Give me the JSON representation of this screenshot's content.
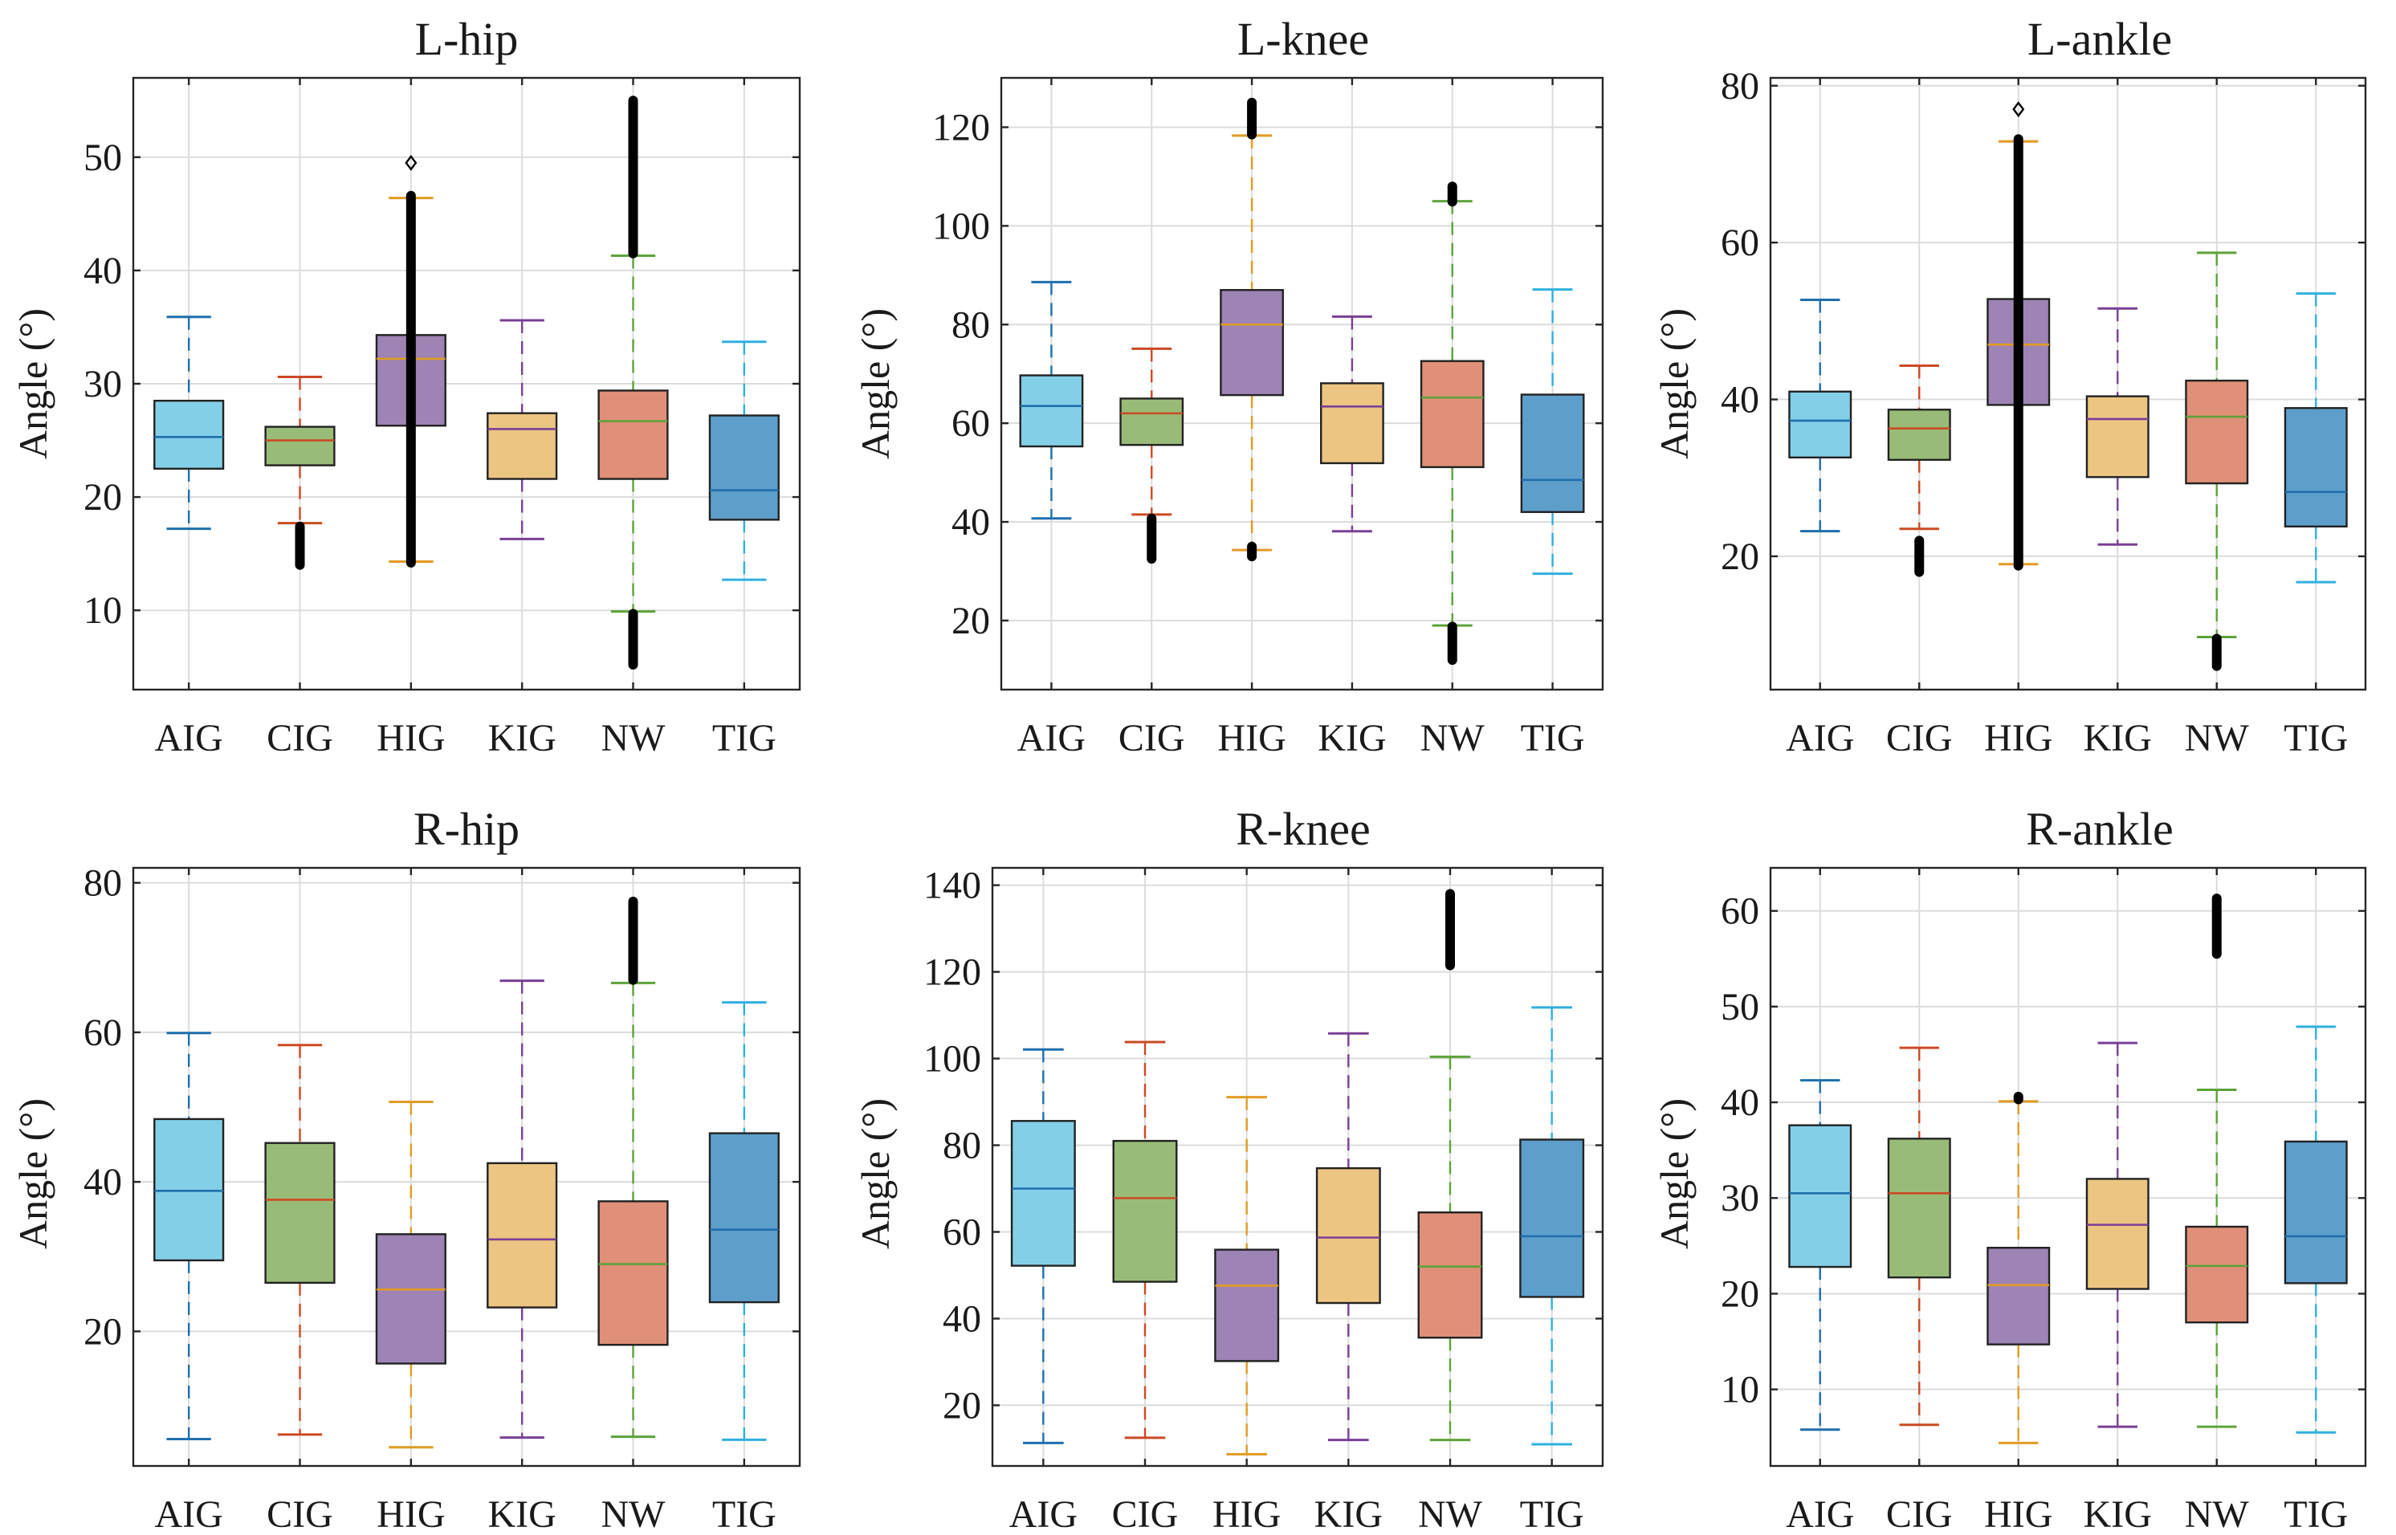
{
  "chart_data": [
    {
      "type": "box",
      "title": "L-hip",
      "xlabel": "",
      "ylabel": "Angle (°)",
      "ylim": [
        3,
        57
      ],
      "yticks": [
        10,
        20,
        30,
        40,
        50
      ],
      "ytick_labels": [
        "10",
        "20",
        "30",
        "40",
        "50"
      ],
      "grid": true,
      "categories": [
        "AIG",
        "CIG",
        "HIG",
        "KIG",
        "NW",
        "TIG"
      ],
      "boxes": [
        {
          "whisker_low": 17.2,
          "q1": 22.5,
          "median": 25.3,
          "q3": 28.5,
          "whisker_high": 35.9,
          "outliers": []
        },
        {
          "whisker_low": 17.7,
          "q1": 22.8,
          "median": 25.0,
          "q3": 26.2,
          "whisker_high": 30.6,
          "outliers": [
            14.0,
            17.4
          ]
        },
        {
          "whisker_low": 14.3,
          "q1": 26.3,
          "median": 32.2,
          "q3": 34.3,
          "whisker_high": 46.4,
          "outliers": [
            14.2,
            46.6,
            49.5
          ]
        },
        {
          "whisker_low": 16.3,
          "q1": 21.6,
          "median": 26.0,
          "q3": 27.4,
          "whisker_high": 35.6,
          "outliers": []
        },
        {
          "whisker_low": 9.9,
          "q1": 21.6,
          "median": 26.7,
          "q3": 29.4,
          "whisker_high": 41.3,
          "outliers": [
            5.2,
            9.7,
            41.5,
            55.0
          ]
        },
        {
          "whisker_low": 12.7,
          "q1": 18.0,
          "median": 20.6,
          "q3": 27.2,
          "whisker_high": 33.7,
          "outliers": []
        }
      ]
    },
    {
      "type": "box",
      "title": "L-knee",
      "xlabel": "",
      "ylabel": "Angle (°)",
      "ylim": [
        6,
        130
      ],
      "yticks": [
        20,
        40,
        60,
        80,
        100,
        120
      ],
      "ytick_labels": [
        "20",
        "40",
        "60",
        "80",
        "100",
        "120"
      ],
      "grid": true,
      "categories": [
        "AIG",
        "CIG",
        "HIG",
        "KIG",
        "NW",
        "TIG"
      ],
      "boxes": [
        {
          "whisker_low": 40.7,
          "q1": 55.3,
          "median": 63.5,
          "q3": 69.7,
          "whisker_high": 88.6,
          "outliers": []
        },
        {
          "whisker_low": 41.5,
          "q1": 55.6,
          "median": 62.0,
          "q3": 65.0,
          "whisker_high": 75.1,
          "outliers": [
            32.5,
            40.7
          ]
        },
        {
          "whisker_low": 34.3,
          "q1": 65.7,
          "median": 80.0,
          "q3": 87.0,
          "whisker_high": 118.3,
          "outliers": [
            33.0,
            35.0,
            118.5,
            125.0
          ]
        },
        {
          "whisker_low": 38.1,
          "q1": 51.9,
          "median": 63.4,
          "q3": 68.1,
          "whisker_high": 81.6,
          "outliers": []
        },
        {
          "whisker_low": 19.0,
          "q1": 51.1,
          "median": 65.2,
          "q3": 72.6,
          "whisker_high": 105.0,
          "outliers": [
            12.0,
            18.8,
            104.9,
            108.0
          ]
        },
        {
          "whisker_low": 29.5,
          "q1": 42.0,
          "median": 48.5,
          "q3": 65.8,
          "whisker_high": 87.1,
          "outliers": []
        }
      ]
    },
    {
      "type": "box",
      "title": "L-ankle",
      "xlabel": "",
      "ylabel": "Angle (°)",
      "ylim": [
        3,
        81
      ],
      "yticks": [
        20,
        40,
        60,
        80
      ],
      "ytick_labels": [
        "20",
        "40",
        "60",
        "80"
      ],
      "grid": true,
      "categories": [
        "AIG",
        "CIG",
        "HIG",
        "KIG",
        "NW",
        "TIG"
      ],
      "boxes": [
        {
          "whisker_low": 23.2,
          "q1": 32.6,
          "median": 37.3,
          "q3": 41.0,
          "whisker_high": 52.7,
          "outliers": []
        },
        {
          "whisker_low": 23.5,
          "q1": 32.3,
          "median": 36.3,
          "q3": 38.7,
          "whisker_high": 44.3,
          "outliers": [
            18.0,
            22.0
          ]
        },
        {
          "whisker_low": 19.0,
          "q1": 39.3,
          "median": 47.0,
          "q3": 52.8,
          "whisker_high": 72.9,
          "outliers": [
            18.8,
            73.2,
            77.0
          ]
        },
        {
          "whisker_low": 21.5,
          "q1": 30.1,
          "median": 37.5,
          "q3": 40.4,
          "whisker_high": 51.6,
          "outliers": []
        },
        {
          "whisker_low": 9.7,
          "q1": 29.3,
          "median": 37.8,
          "q3": 42.4,
          "whisker_high": 58.7,
          "outliers": [
            6.0,
            9.5
          ]
        },
        {
          "whisker_low": 16.7,
          "q1": 23.8,
          "median": 28.2,
          "q3": 38.9,
          "whisker_high": 53.5,
          "outliers": []
        }
      ]
    },
    {
      "type": "box",
      "title": "R-hip",
      "xlabel": "",
      "ylabel": "Angle (°)",
      "ylim": [
        2,
        82
      ],
      "yticks": [
        20,
        40,
        60,
        80
      ],
      "ytick_labels": [
        "20",
        "40",
        "60",
        "80"
      ],
      "grid": true,
      "categories": [
        "AIG",
        "CIG",
        "HIG",
        "KIG",
        "NW",
        "TIG"
      ],
      "boxes": [
        {
          "whisker_low": 5.6,
          "q1": 29.5,
          "median": 38.8,
          "q3": 48.4,
          "whisker_high": 59.9,
          "outliers": []
        },
        {
          "whisker_low": 6.2,
          "q1": 26.5,
          "median": 37.6,
          "q3": 45.2,
          "whisker_high": 58.3,
          "outliers": []
        },
        {
          "whisker_low": 4.5,
          "q1": 15.7,
          "median": 25.6,
          "q3": 33.0,
          "whisker_high": 50.7,
          "outliers": []
        },
        {
          "whisker_low": 5.8,
          "q1": 23.2,
          "median": 32.3,
          "q3": 42.5,
          "whisker_high": 66.9,
          "outliers": []
        },
        {
          "whisker_low": 5.9,
          "q1": 18.2,
          "median": 29.0,
          "q3": 37.4,
          "whisker_high": 66.6,
          "outliers": [
            67.0,
            77.5
          ]
        },
        {
          "whisker_low": 5.5,
          "q1": 23.9,
          "median": 33.6,
          "q3": 46.5,
          "whisker_high": 64.0,
          "outliers": []
        }
      ]
    },
    {
      "type": "box",
      "title": "R-knee",
      "xlabel": "",
      "ylabel": "Angle (°)",
      "ylim": [
        6,
        144
      ],
      "yticks": [
        20,
        40,
        60,
        80,
        100,
        120,
        140
      ],
      "ytick_labels": [
        "20",
        "40",
        "60",
        "80",
        "100",
        "120",
        "140"
      ],
      "grid": true,
      "categories": [
        "AIG",
        "CIG",
        "HIG",
        "KIG",
        "NW",
        "TIG"
      ],
      "boxes": [
        {
          "whisker_low": 11.3,
          "q1": 52.2,
          "median": 70.0,
          "q3": 85.6,
          "whisker_high": 102.1,
          "outliers": []
        },
        {
          "whisker_low": 12.5,
          "q1": 48.5,
          "median": 67.8,
          "q3": 81.0,
          "whisker_high": 103.8,
          "outliers": []
        },
        {
          "whisker_low": 8.7,
          "q1": 30.2,
          "median": 47.6,
          "q3": 55.9,
          "whisker_high": 91.1,
          "outliers": []
        },
        {
          "whisker_low": 12.0,
          "q1": 43.6,
          "median": 58.7,
          "q3": 74.7,
          "whisker_high": 105.8,
          "outliers": []
        },
        {
          "whisker_low": 12.0,
          "q1": 35.6,
          "median": 52.0,
          "q3": 64.5,
          "whisker_high": 100.4,
          "outliers": [
            121.5,
            138.0
          ]
        },
        {
          "whisker_low": 11.0,
          "q1": 45.0,
          "median": 59.0,
          "q3": 81.3,
          "whisker_high": 111.8,
          "outliers": []
        }
      ]
    },
    {
      "type": "box",
      "title": "R-ankle",
      "xlabel": "",
      "ylabel": "Angle (°)",
      "ylim": [
        2,
        64.5
      ],
      "yticks": [
        10,
        20,
        30,
        40,
        50,
        60
      ],
      "ytick_labels": [
        "10",
        "20",
        "30",
        "40",
        "50",
        "60"
      ],
      "grid": true,
      "categories": [
        "AIG",
        "CIG",
        "HIG",
        "KIG",
        "NW",
        "TIG"
      ],
      "boxes": [
        {
          "whisker_low": 5.8,
          "q1": 22.8,
          "median": 30.5,
          "q3": 37.6,
          "whisker_high": 42.3,
          "outliers": []
        },
        {
          "whisker_low": 6.3,
          "q1": 21.7,
          "median": 30.5,
          "q3": 36.2,
          "whisker_high": 45.7,
          "outliers": []
        },
        {
          "whisker_low": 4.4,
          "q1": 14.7,
          "median": 20.9,
          "q3": 24.8,
          "whisker_high": 40.1,
          "outliers": [
            40.3,
            40.6
          ]
        },
        {
          "whisker_low": 6.1,
          "q1": 20.5,
          "median": 27.2,
          "q3": 32.0,
          "whisker_high": 46.2,
          "outliers": []
        },
        {
          "whisker_low": 6.1,
          "q1": 17.0,
          "median": 22.9,
          "q3": 27.0,
          "whisker_high": 41.3,
          "outliers": [
            55.5,
            61.3
          ]
        },
        {
          "whisker_low": 5.5,
          "q1": 21.1,
          "median": 26.0,
          "q3": 35.9,
          "whisker_high": 47.9,
          "outliers": []
        }
      ]
    }
  ],
  "colors": {
    "box_fills": [
      "#84cfe8",
      "#98bc78",
      "#9e83b5",
      "#ecc582",
      "#e08f78",
      "#5e9ecb"
    ],
    "whisker_colors": [
      "#1f6fad",
      "#cc4a24",
      "#e29b22",
      "#7a3f96",
      "#5da33a",
      "#30b0e0"
    ],
    "median_colors": [
      "#1f6fad",
      "#cc4a24",
      "#e29b22",
      "#7a3f96",
      "#5da33a",
      "#1f6fad"
    ],
    "axis": "#262626",
    "grid": "#dcdcdc",
    "outlier": "#000000"
  }
}
